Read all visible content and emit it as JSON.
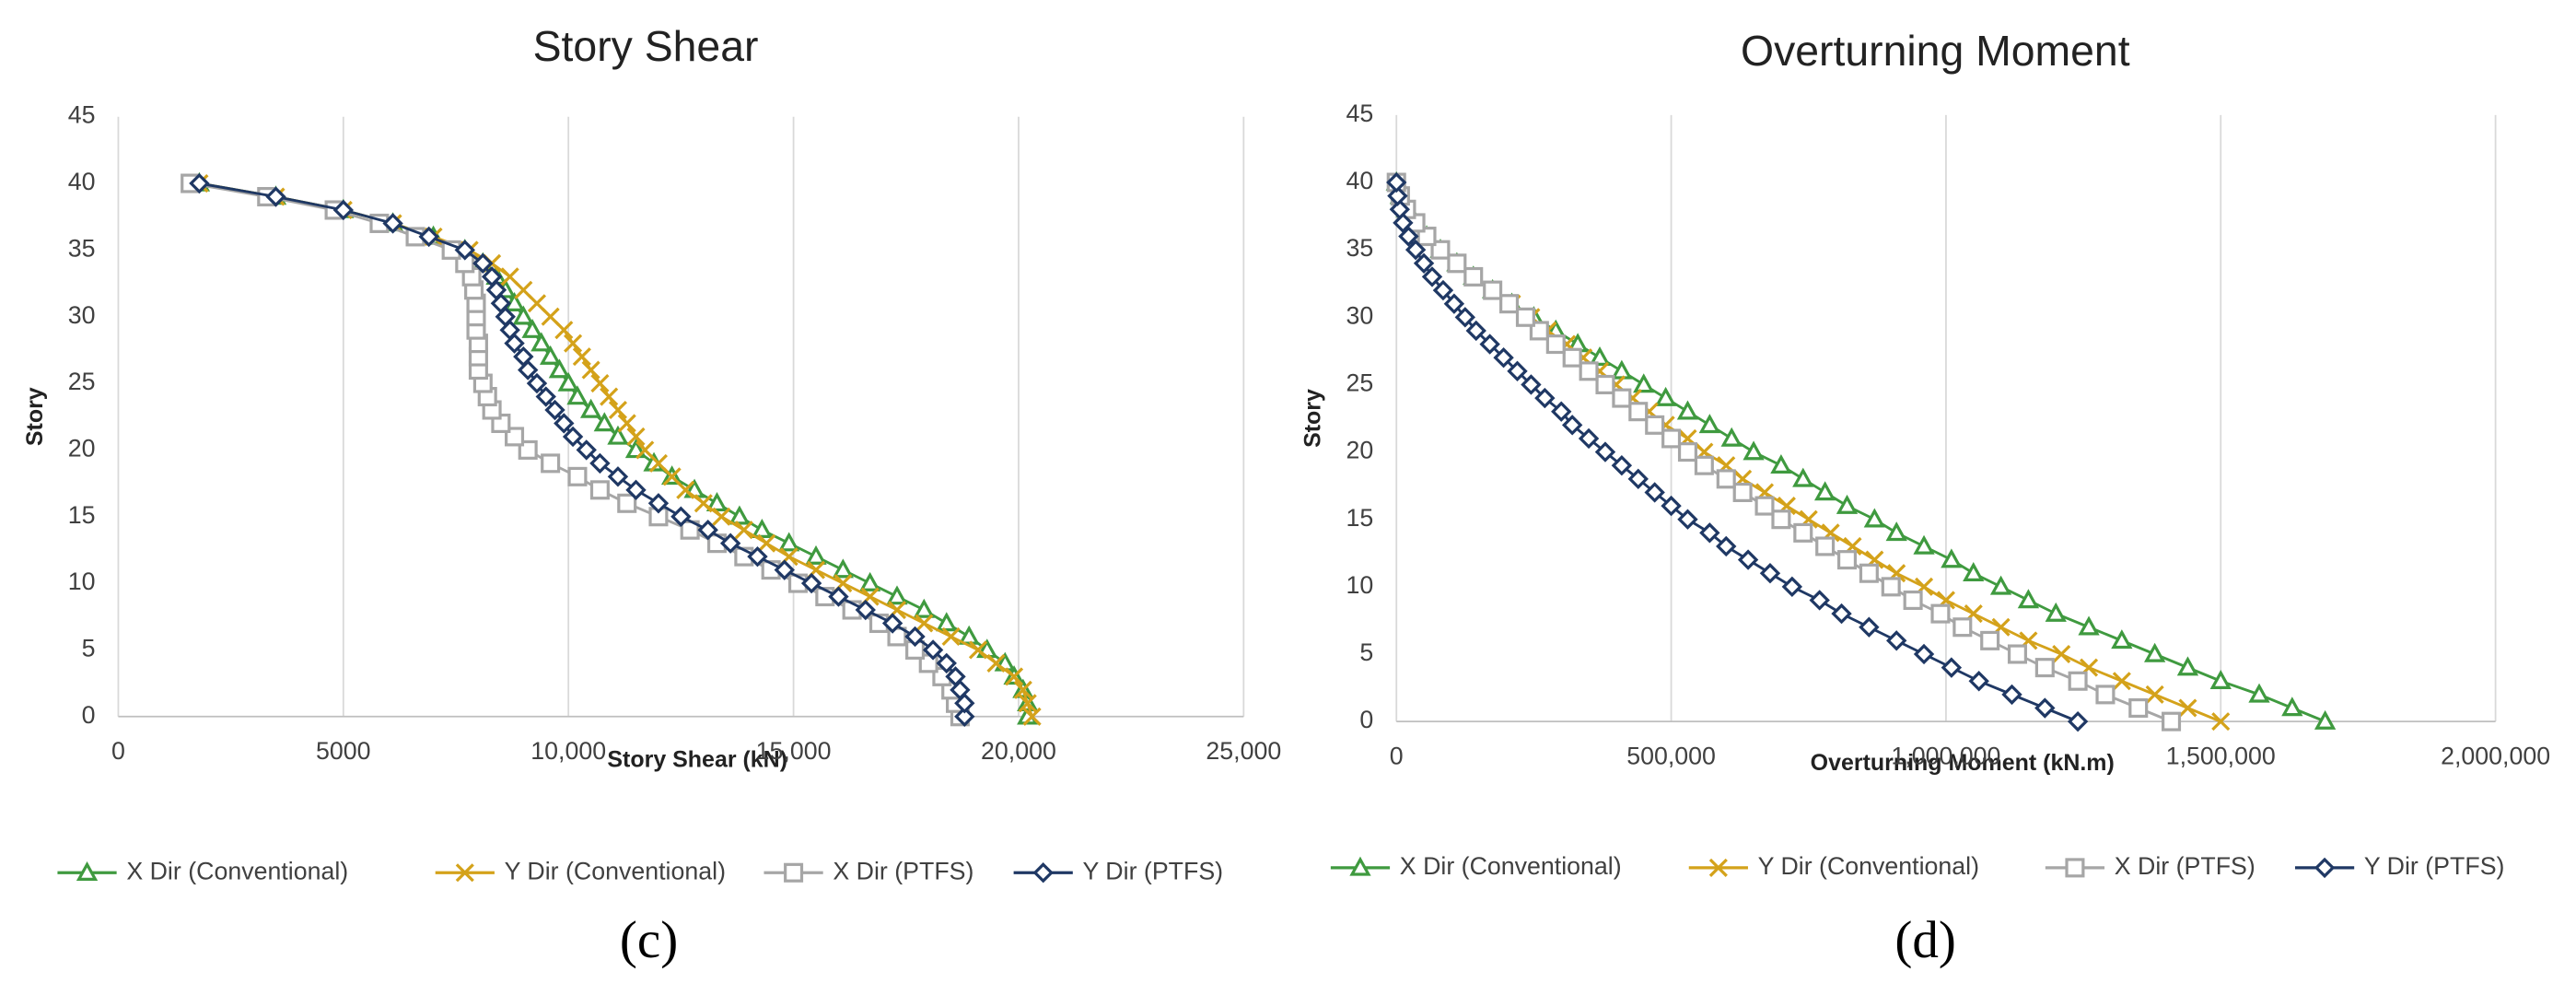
{
  "chart_data": [
    {
      "type": "line",
      "title": "Story Shear",
      "xlabel": "Story Shear (kN)",
      "ylabel": "Story",
      "caption": "(c)",
      "y": [
        0,
        1,
        2,
        3,
        4,
        5,
        6,
        7,
        8,
        9,
        10,
        11,
        12,
        13,
        14,
        15,
        16,
        17,
        18,
        19,
        20,
        21,
        22,
        23,
        24,
        25,
        26,
        27,
        28,
        29,
        30,
        31,
        32,
        33,
        34,
        35,
        36,
        37,
        38,
        39,
        40
      ],
      "xlim": [
        0,
        25000
      ],
      "xticks": [
        0,
        5000,
        {
          "value": 10000,
          "label": "10,000"
        },
        {
          "value": 15000,
          "label": "15,000"
        },
        {
          "value": 20000,
          "label": "20,000"
        },
        {
          "value": 25000,
          "label": "25,000"
        }
      ],
      "ylim": [
        0,
        45
      ],
      "yticks": [
        0,
        5,
        10,
        15,
        20,
        25,
        30,
        35,
        40,
        45
      ],
      "grid": "x",
      "series": [
        {
          "name": "X Dir (Conventional)",
          "color": "#3f9a3f",
          "marker": "triangle",
          "values": [
            20200,
            20200,
            20100,
            19900,
            19700,
            19300,
            18900,
            18400,
            17900,
            17300,
            16700,
            16100,
            15500,
            14900,
            14300,
            13800,
            13300,
            12800,
            12300,
            11900,
            11500,
            11100,
            10800,
            10500,
            10200,
            10000,
            9800,
            9600,
            9400,
            9200,
            9000,
            8800,
            8600,
            8400,
            8100,
            7700,
            7000,
            6100,
            5000,
            3500,
            1800
          ]
        },
        {
          "name": "Y Dir (Conventional)",
          "color": "#d4a21a",
          "marker": "x",
          "values": [
            20300,
            20200,
            20100,
            19900,
            19500,
            19100,
            18500,
            17900,
            17300,
            16700,
            16100,
            15500,
            14900,
            14400,
            13900,
            13400,
            13000,
            12600,
            12300,
            12000,
            11700,
            11500,
            11300,
            11100,
            10900,
            10700,
            10500,
            10300,
            10100,
            9900,
            9600,
            9300,
            9000,
            8700,
            8300,
            7800,
            7000,
            6100,
            5000,
            3500,
            1800
          ]
        },
        {
          "name": "X Dir (PTFS)",
          "color": "#a6a6a6",
          "marker": "square",
          "values": [
            18700,
            18600,
            18500,
            18300,
            18000,
            17700,
            17300,
            16900,
            16300,
            15700,
            15100,
            14500,
            13900,
            13300,
            12700,
            12000,
            11300,
            10700,
            10200,
            9600,
            9100,
            8800,
            8500,
            8300,
            8200,
            8100,
            8000,
            8000,
            8000,
            7950,
            7950,
            7950,
            7900,
            7850,
            7700,
            7400,
            6600,
            5800,
            4800,
            3300,
            1600
          ]
        },
        {
          "name": "Y Dir (PTFS)",
          "color": "#1f3864",
          "marker": "diamond",
          "values": [
            18800,
            18800,
            18700,
            18600,
            18400,
            18100,
            17700,
            17200,
            16600,
            16000,
            15400,
            14800,
            14200,
            13600,
            13100,
            12500,
            12000,
            11500,
            11100,
            10700,
            10400,
            10100,
            9900,
            9700,
            9500,
            9300,
            9100,
            9000,
            8800,
            8700,
            8600,
            8500,
            8400,
            8300,
            8100,
            7700,
            6900,
            6100,
            5000,
            3500,
            1800
          ]
        }
      ]
    },
    {
      "type": "line",
      "title": "Overturning Moment",
      "xlabel": "Overturning Moment (kN.m)",
      "ylabel": "Story",
      "caption": "(d)",
      "y": [
        0,
        1,
        2,
        3,
        4,
        5,
        6,
        7,
        8,
        9,
        10,
        11,
        12,
        13,
        14,
        15,
        16,
        17,
        18,
        19,
        20,
        21,
        22,
        23,
        24,
        25,
        26,
        27,
        28,
        29,
        30,
        31,
        32,
        33,
        34,
        35,
        36,
        37,
        38,
        39,
        40
      ],
      "xlim": [
        0,
        2000000
      ],
      "xticks": [
        0,
        {
          "value": 500000,
          "label": "500,000"
        },
        {
          "value": 1000000,
          "label": "1,000,000"
        },
        {
          "value": 1500000,
          "label": "1,500,000"
        },
        {
          "value": 2000000,
          "label": "2,000,000"
        }
      ],
      "ylim": [
        0,
        45
      ],
      "yticks": [
        0,
        5,
        10,
        15,
        20,
        25,
        30,
        35,
        40,
        45
      ],
      "grid": "x",
      "series": [
        {
          "name": "X Dir (Conventional)",
          "color": "#3f9a3f",
          "marker": "triangle",
          "values": [
            1690000,
            1630000,
            1570000,
            1500000,
            1440000,
            1380000,
            1320000,
            1260000,
            1200000,
            1150000,
            1100000,
            1050000,
            1010000,
            960000,
            910000,
            870000,
            820000,
            780000,
            740000,
            700000,
            650000,
            610000,
            570000,
            530000,
            490000,
            450000,
            410000,
            370000,
            330000,
            290000,
            250000,
            210000,
            175000,
            140000,
            110000,
            80000,
            55000,
            35000,
            18000,
            7000,
            0
          ]
        },
        {
          "name": "Y Dir (Conventional)",
          "color": "#d4a21a",
          "marker": "x",
          "values": [
            1500000,
            1440000,
            1380000,
            1320000,
            1260000,
            1210000,
            1150000,
            1100000,
            1050000,
            1000000,
            960000,
            910000,
            870000,
            830000,
            790000,
            750000,
            710000,
            670000,
            630000,
            600000,
            560000,
            530000,
            490000,
            460000,
            430000,
            400000,
            370000,
            340000,
            310000,
            275000,
            245000,
            210000,
            175000,
            140000,
            110000,
            80000,
            55000,
            35000,
            18000,
            7000,
            0
          ]
        },
        {
          "name": "X Dir (PTFS)",
          "color": "#a6a6a6",
          "marker": "square",
          "values": [
            1410000,
            1350000,
            1290000,
            1240000,
            1180000,
            1130000,
            1080000,
            1030000,
            990000,
            940000,
            900000,
            860000,
            820000,
            780000,
            740000,
            700000,
            670000,
            630000,
            600000,
            560000,
            530000,
            500000,
            470000,
            440000,
            410000,
            380000,
            350000,
            320000,
            290000,
            260000,
            235000,
            205000,
            175000,
            140000,
            110000,
            80000,
            55000,
            35000,
            18000,
            7000,
            0
          ]
        },
        {
          "name": "Y Dir (PTFS)",
          "color": "#1f3864",
          "marker": "diamond",
          "values": [
            1240000,
            1180000,
            1120000,
            1060000,
            1010000,
            960000,
            910000,
            860000,
            810000,
            770000,
            720000,
            680000,
            640000,
            600000,
            570000,
            530000,
            500000,
            470000,
            440000,
            410000,
            380000,
            350000,
            320000,
            300000,
            270000,
            245000,
            220000,
            195000,
            170000,
            145000,
            125000,
            105000,
            85000,
            65000,
            50000,
            35000,
            22000,
            12000,
            6000,
            2000,
            0
          ]
        }
      ]
    }
  ]
}
